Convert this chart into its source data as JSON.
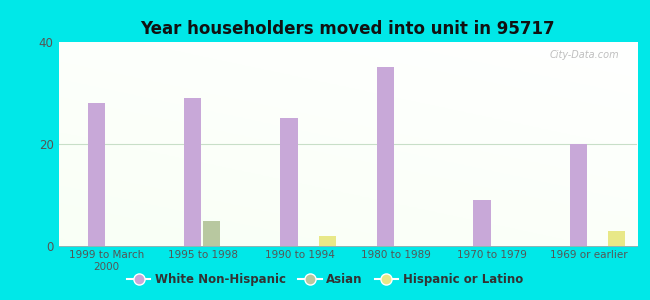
{
  "title": "Year householders moved into unit in 95717",
  "categories": [
    "1999 to March\n2000",
    "1995 to 1998",
    "1990 to 1994",
    "1980 to 1989",
    "1970 to 1979",
    "1969 or earlier"
  ],
  "white_non_hispanic": [
    28,
    29,
    25,
    35,
    9,
    20
  ],
  "asian": [
    0,
    5,
    0,
    0,
    0,
    0
  ],
  "hispanic_or_latino": [
    0,
    0,
    2,
    0,
    0,
    3
  ],
  "bar_width": 0.18,
  "ylim": [
    0,
    40
  ],
  "yticks": [
    0,
    20,
    40
  ],
  "colors": {
    "white_non_hispanic": "#c8a8d8",
    "asian": "#b8c8a0",
    "hispanic_or_latino": "#e8e888",
    "background_outer": "#00e8e8",
    "grid_line": "#c8dfc8"
  },
  "legend_labels": [
    "White Non-Hispanic",
    "Asian",
    "Hispanic or Latino"
  ],
  "watermark": "City-Data.com"
}
